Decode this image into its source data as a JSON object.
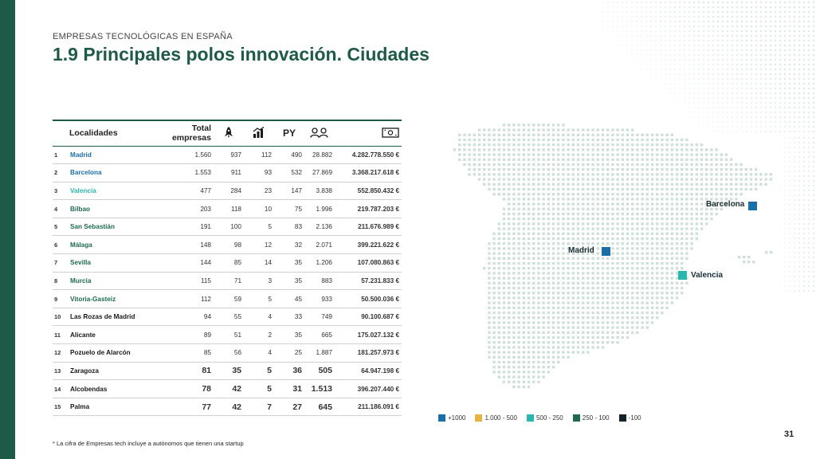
{
  "header": {
    "subtitle": "EMPRESAS TECNOLÓGICAS EN ESPAÑA",
    "title": "1.9 Principales polos innovación. Ciudades"
  },
  "table": {
    "columns": {
      "localidades": "Localidades",
      "total_line1": "Total",
      "total_line2": "empresas",
      "col_rocket_icon": "rocket-icon",
      "col_growth_icon": "growth-chart-icon",
      "py": "PY",
      "col_people_icon": "people-icon",
      "col_money_icon": "banknote-icon"
    },
    "rows": [
      {
        "num": "1",
        "name": "Madrid",
        "total": "1.560",
        "startups": "937",
        "scaleups": "112",
        "py": "490",
        "employees": "28.882",
        "revenue": "4.282.778.550 €",
        "color": "#1b6fa8"
      },
      {
        "num": "2",
        "name": "Barcelona",
        "total": "1.553",
        "startups": "911",
        "scaleups": "93",
        "py": "532",
        "employees": "27.869",
        "revenue": "3.368.217.618 €",
        "color": "#1b6fa8"
      },
      {
        "num": "3",
        "name": "Valencia",
        "total": "477",
        "startups": "284",
        "scaleups": "23",
        "py": "147",
        "employees": "3.838",
        "revenue": "552.850.432 €",
        "color": "#2ab7b0"
      },
      {
        "num": "4",
        "name": "Bilbao",
        "total": "203",
        "startups": "118",
        "scaleups": "10",
        "py": "75",
        "employees": "1.996",
        "revenue": "219.787.203 €",
        "color": "#1d6b50"
      },
      {
        "num": "5",
        "name": "San Sebastián",
        "total": "191",
        "startups": "100",
        "scaleups": "5",
        "py": "83",
        "employees": "2.136",
        "revenue": "211.676.989 €",
        "color": "#1d6b50"
      },
      {
        "num": "6",
        "name": "Málaga",
        "total": "148",
        "startups": "98",
        "scaleups": "12",
        "py": "32",
        "employees": "2.071",
        "revenue": "399.221.622 €",
        "color": "#1d6b50"
      },
      {
        "num": "7",
        "name": "Sevilla",
        "total": "144",
        "startups": "85",
        "scaleups": "14",
        "py": "35",
        "employees": "1.206",
        "revenue": "107.080.863 €",
        "color": "#1d6b50"
      },
      {
        "num": "8",
        "name": "Murcia",
        "total": "115",
        "startups": "71",
        "scaleups": "3",
        "py": "35",
        "employees": "883",
        "revenue": "57.231.833 €",
        "color": "#1d6b50"
      },
      {
        "num": "9",
        "name": "Vitoria-Gasteiz",
        "total": "112",
        "startups": "59",
        "scaleups": "5",
        "py": "45",
        "employees": "933",
        "revenue": "50.500.036 €",
        "color": "#1d6b50"
      },
      {
        "num": "10",
        "name": "Las Rozas de Madrid",
        "total": "94",
        "startups": "55",
        "scaleups": "4",
        "py": "33",
        "employees": "749",
        "revenue": "90.100.687 €",
        "color": "#1a1a1a"
      },
      {
        "num": "11",
        "name": "Alicante",
        "total": "89",
        "startups": "51",
        "scaleups": "2",
        "py": "35",
        "employees": "665",
        "revenue": "175.027.132 €",
        "color": "#1a1a1a"
      },
      {
        "num": "12",
        "name": "Pozuelo de Alarcón",
        "total": "85",
        "startups": "56",
        "scaleups": "4",
        "py": "25",
        "employees": "1.887",
        "revenue": "181.257.973 €",
        "color": "#1a1a1a"
      },
      {
        "num": "13",
        "name": "Zaragoza",
        "total": "81",
        "startups": "35",
        "scaleups": "5",
        "py": "36",
        "employees": "505",
        "revenue": "64.947.198 €",
        "color": "#1a1a1a"
      },
      {
        "num": "14",
        "name": "Alcobendas",
        "total": "78",
        "startups": "42",
        "scaleups": "5",
        "py": "31",
        "employees": "1.513",
        "revenue": "396.207.440 €",
        "color": "#1a1a1a"
      },
      {
        "num": "15",
        "name": "Palma",
        "total": "77",
        "startups": "42",
        "scaleups": "7",
        "py": "27",
        "employees": "645",
        "revenue": "211.186.091 €",
        "color": "#1a1a1a"
      }
    ]
  },
  "map": {
    "cities": [
      {
        "name": "Barcelona",
        "color": "#1b6fa8"
      },
      {
        "name": "Madrid",
        "color": "#1b6fa8"
      },
      {
        "name": "Valencia",
        "color": "#2ab7b0"
      }
    ],
    "legend": [
      {
        "label": "+1000",
        "color": "#1b6fa8"
      },
      {
        "label": "1.000 - 500",
        "color": "#e8b441"
      },
      {
        "label": "500 - 250",
        "color": "#2ab7b0"
      },
      {
        "label": "250 - 100",
        "color": "#1d6b50"
      },
      {
        "label": "-100",
        "color": "#14232a"
      }
    ]
  },
  "footnote": "* La cifra de Empresas tech incluye a autónomos que tienen una startup",
  "page_number": "31"
}
